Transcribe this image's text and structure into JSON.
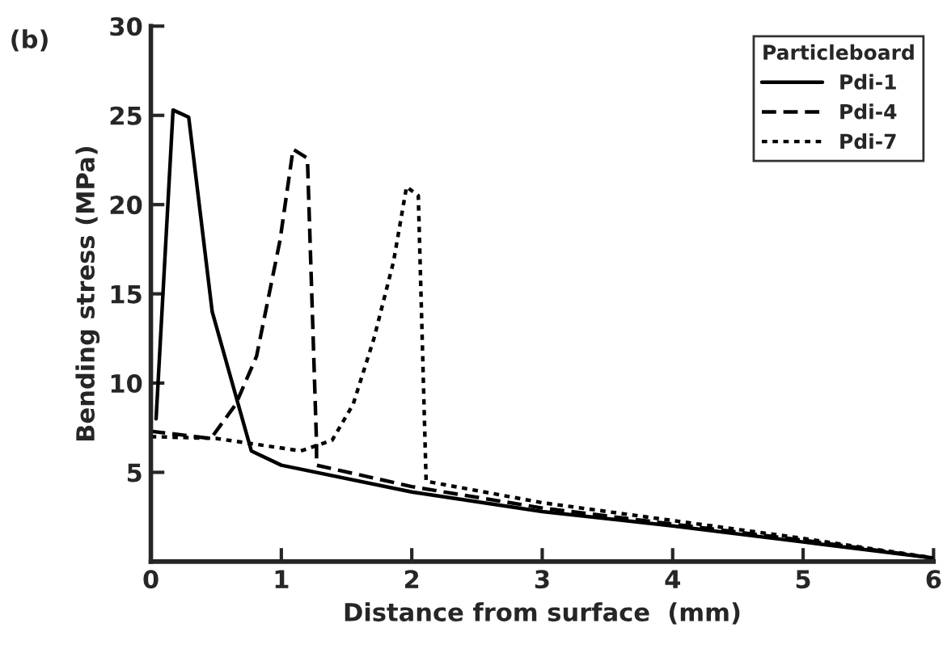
{
  "chart_data": {
    "type": "line",
    "xlabel": "Distance from surface  (mm)",
    "ylabel": "Bending stress (MPa)",
    "legend_title": "Particleboard",
    "annotations": [
      "(b)"
    ],
    "xlim": [
      0,
      6
    ],
    "ylim": [
      0,
      30
    ],
    "xticks": [
      0,
      1,
      2,
      3,
      4,
      5,
      6
    ],
    "yticks": [
      5,
      10,
      15,
      20,
      25,
      30
    ],
    "legend": "top right",
    "grid": false,
    "series": [
      {
        "name": "Pdi-1",
        "color": "#000000",
        "line_style": "solid",
        "x": [
          0.04,
          0.17,
          0.29,
          0.47,
          0.77,
          1.0,
          2.0,
          3.0,
          4.0,
          5.0,
          6.0
        ],
        "values": [
          8.0,
          25.3,
          24.9,
          14.0,
          6.2,
          5.4,
          3.9,
          2.8,
          2.0,
          1.1,
          0.2
        ]
      },
      {
        "name": "Pdi-4",
        "color": "#000000",
        "line_style": "dashed",
        "x": [
          0,
          0.46,
          0.65,
          0.81,
          0.99,
          1.09,
          1.2,
          1.27,
          1.27,
          2.0,
          3.0,
          4.0,
          5.0,
          6.0
        ],
        "values": [
          7.3,
          6.9,
          8.8,
          11.5,
          18.0,
          23.1,
          22.6,
          6.6,
          5.4,
          4.2,
          3.0,
          2.1,
          1.2,
          0.2
        ]
      },
      {
        "name": "Pdi-7",
        "color": "#000000",
        "line_style": "dotted",
        "x": [
          0,
          0.5,
          1.15,
          1.39,
          1.55,
          1.71,
          1.86,
          1.96,
          2.05,
          2.11,
          3.0,
          4.0,
          5.0,
          6.0
        ],
        "values": [
          7.0,
          6.9,
          6.2,
          6.8,
          8.8,
          12.5,
          16.8,
          21.0,
          20.5,
          4.5,
          3.3,
          2.3,
          1.3,
          0.2
        ]
      }
    ]
  }
}
